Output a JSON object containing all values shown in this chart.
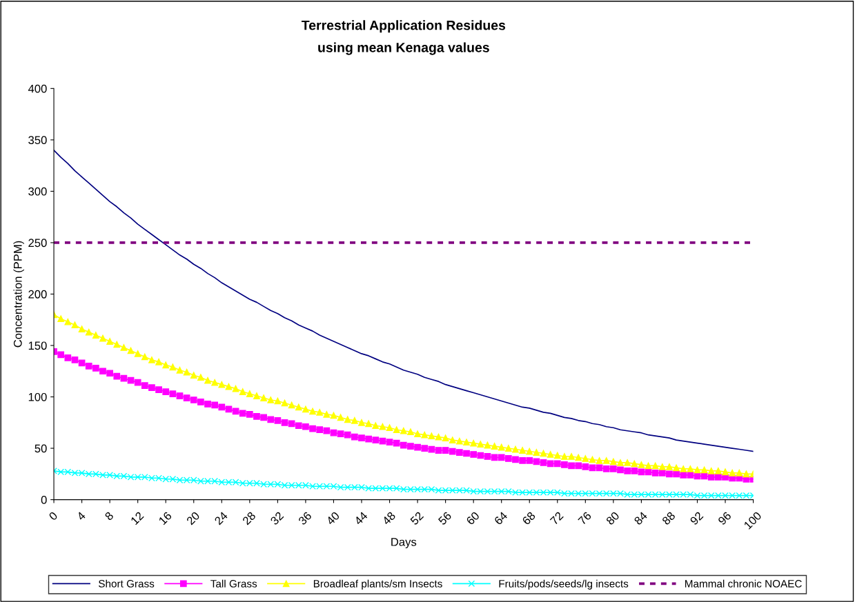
{
  "chart_data": {
    "type": "line",
    "title": "Terrestrial Application Residues\nusing mean Kenaga values",
    "xlabel": "Days",
    "ylabel": "Concentration (PPM)",
    "categories": [
      "0",
      null,
      null,
      null,
      "4",
      null,
      null,
      null,
      "8",
      null,
      null,
      null,
      "12",
      null,
      null,
      null,
      "16",
      null,
      null,
      null,
      "20",
      null,
      null,
      null,
      "24",
      null,
      null,
      null,
      "28",
      null,
      null,
      null,
      "32",
      null,
      null,
      null,
      "36",
      null,
      null,
      null,
      "40",
      null,
      null,
      null,
      "44",
      null,
      null,
      null,
      "48",
      null,
      null,
      null,
      "52",
      null,
      null,
      null,
      "56",
      null,
      null,
      null,
      "60",
      null,
      null,
      null,
      "64",
      null,
      null,
      null,
      "68",
      null,
      null,
      null,
      "72",
      null,
      null,
      null,
      "76",
      null,
      null,
      null,
      "80",
      null,
      null,
      null,
      "84",
      null,
      null,
      null,
      "88",
      null,
      null,
      null,
      "92",
      null,
      null,
      null,
      "96",
      null,
      null,
      null,
      "100"
    ],
    "ylim": [
      0,
      400
    ],
    "yticks": [
      0,
      50,
      100,
      150,
      200,
      250,
      300,
      350,
      400
    ],
    "grid": false,
    "legend": "bottom",
    "series": [
      {
        "name": "Short Grass",
        "color": "#000080",
        "marker": "none",
        "line_style": "solid",
        "values": [
          340,
          333,
          327,
          320,
          314,
          308,
          302,
          296,
          290,
          285,
          279,
          274,
          268,
          263,
          258,
          253,
          248,
          243,
          238,
          234,
          229,
          225,
          220,
          216,
          211,
          207,
          203,
          199,
          195,
          192,
          188,
          184,
          181,
          177,
          174,
          170,
          167,
          164,
          160,
          157,
          154,
          151,
          148,
          145,
          142,
          140,
          137,
          134,
          132,
          129,
          126,
          124,
          122,
          119,
          117,
          115,
          112,
          110,
          108,
          106,
          104,
          102,
          100,
          98,
          96,
          94,
          92,
          90,
          89,
          87,
          85,
          84,
          82,
          80,
          79,
          77,
          76,
          74,
          73,
          71,
          70,
          68,
          67,
          66,
          65,
          63,
          62,
          61,
          60,
          58,
          57,
          56,
          55,
          54,
          53,
          52,
          51,
          50,
          49,
          48,
          47
        ]
      },
      {
        "name": "Tall Grass",
        "color": "#ff00ff",
        "marker": "square",
        "line_style": "solid",
        "values": [
          144,
          141,
          138,
          136,
          133,
          130,
          128,
          125,
          123,
          120,
          118,
          116,
          114,
          111,
          109,
          107,
          105,
          103,
          101,
          99,
          97,
          95,
          93,
          92,
          90,
          88,
          86,
          84,
          83,
          81,
          80,
          78,
          77,
          75,
          74,
          72,
          71,
          69,
          68,
          67,
          65,
          64,
          63,
          61,
          60,
          59,
          58,
          57,
          56,
          55,
          53,
          52,
          51,
          50,
          49,
          48,
          48,
          47,
          46,
          45,
          44,
          43,
          42,
          41,
          41,
          40,
          39,
          38,
          38,
          37,
          36,
          35,
          35,
          34,
          33,
          33,
          32,
          31,
          31,
          30,
          30,
          29,
          28,
          28,
          27,
          27,
          26,
          26,
          25,
          25,
          24,
          24,
          23,
          23,
          22,
          22,
          22,
          21,
          21,
          20,
          20
        ]
      },
      {
        "name": "Broadleaf plants/sm Insects",
        "color": "#ffff00",
        "marker": "triangle",
        "line_style": "solid",
        "values": [
          180,
          176,
          173,
          170,
          166,
          163,
          160,
          157,
          154,
          151,
          148,
          145,
          142,
          139,
          136,
          134,
          131,
          129,
          126,
          124,
          121,
          119,
          116,
          114,
          112,
          110,
          108,
          105,
          103,
          101,
          99,
          97,
          96,
          94,
          92,
          90,
          88,
          86,
          85,
          83,
          82,
          80,
          78,
          77,
          75,
          74,
          72,
          71,
          70,
          68,
          67,
          66,
          64,
          63,
          62,
          61,
          60,
          58,
          57,
          56,
          55,
          54,
          53,
          52,
          51,
          50,
          49,
          48,
          47,
          46,
          45,
          44,
          43,
          42,
          42,
          41,
          40,
          39,
          38,
          38,
          37,
          36,
          36,
          35,
          34,
          33,
          33,
          32,
          32,
          31,
          30,
          30,
          29,
          29,
          28,
          28,
          27,
          26,
          26,
          25,
          25
        ]
      },
      {
        "name": "Fruits/pods/seeds/lg insects",
        "color": "#00ffff",
        "marker": "cross",
        "line_style": "solid",
        "values": [
          28,
          27,
          27,
          26,
          26,
          25,
          25,
          24,
          24,
          23,
          23,
          22,
          22,
          22,
          21,
          21,
          20,
          20,
          19,
          19,
          19,
          18,
          18,
          18,
          17,
          17,
          17,
          16,
          16,
          16,
          15,
          15,
          15,
          14,
          14,
          14,
          14,
          13,
          13,
          13,
          13,
          12,
          12,
          12,
          12,
          11,
          11,
          11,
          11,
          11,
          10,
          10,
          10,
          10,
          10,
          9,
          9,
          9,
          9,
          9,
          8,
          8,
          8,
          8,
          8,
          8,
          7,
          7,
          7,
          7,
          7,
          7,
          7,
          6,
          6,
          6,
          6,
          6,
          6,
          6,
          6,
          6,
          5,
          5,
          5,
          5,
          5,
          5,
          5,
          5,
          5,
          5,
          4,
          4,
          4,
          4,
          4,
          4,
          4,
          4,
          4
        ]
      },
      {
        "name": "Mammal chronic NOAEC",
        "color": "#800080",
        "marker": "none",
        "line_style": "dashed",
        "values": [
          250,
          250,
          250,
          250,
          250,
          250,
          250,
          250,
          250,
          250,
          250,
          250,
          250,
          250,
          250,
          250,
          250,
          250,
          250,
          250,
          250,
          250,
          250,
          250,
          250,
          250,
          250,
          250,
          250,
          250,
          250,
          250,
          250,
          250,
          250,
          250,
          250,
          250,
          250,
          250,
          250,
          250,
          250,
          250,
          250,
          250,
          250,
          250,
          250,
          250,
          250,
          250,
          250,
          250,
          250,
          250,
          250,
          250,
          250,
          250,
          250,
          250,
          250,
          250,
          250,
          250,
          250,
          250,
          250,
          250,
          250,
          250,
          250,
          250,
          250,
          250,
          250,
          250,
          250,
          250,
          250,
          250,
          250,
          250,
          250,
          250,
          250,
          250,
          250,
          250,
          250,
          250,
          250,
          250,
          250,
          250,
          250,
          250,
          250,
          250,
          250
        ]
      }
    ]
  }
}
